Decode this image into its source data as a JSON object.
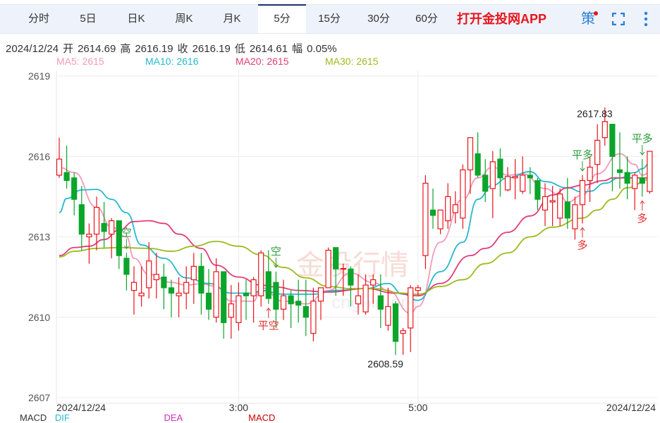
{
  "tabs": [
    {
      "label": "分时"
    },
    {
      "label": "5日"
    },
    {
      "label": "日K"
    },
    {
      "label": "周K"
    },
    {
      "label": "月K"
    },
    {
      "label": "5分",
      "active": true
    },
    {
      "label": "15分"
    },
    {
      "label": "30分"
    },
    {
      "label": "60分"
    }
  ],
  "toolbar": {
    "app_link": "打开金投网APP",
    "strategy_label": "策",
    "fullscreen_icon": "fullscreen-icon",
    "more_icon": "vertical-dots-icon"
  },
  "info": {
    "date": "2024/12/24",
    "open_label": "开",
    "open": "2614.69",
    "high_label": "高",
    "high": "2616.19",
    "close_label": "收",
    "close": "2616.19",
    "low_label": "低",
    "low": "2614.61",
    "change_label": "幅",
    "change": "0.05%"
  },
  "legend": [
    {
      "text": "MA5: 2615",
      "color": "#f29bb8"
    },
    {
      "text": "MA10: 2616",
      "color": "#25b9cf"
    },
    {
      "text": "MA20: 2615",
      "color": "#e23e74"
    },
    {
      "text": "MA30: 2615",
      "color": "#9cbb1e"
    }
  ],
  "watermark": {
    "text": "金投行情",
    "sub": "cngold.org"
  },
  "macd_row": {
    "label": "MACD",
    "dif": "DIF",
    "dea": "DEA",
    "macd": "MACD"
  },
  "chart_data": {
    "type": "candlestick",
    "ylim": [
      2607,
      2619
    ],
    "yticks": [
      "2619",
      "2616",
      "2613",
      "2610",
      "2607"
    ],
    "xticks": [
      {
        "label": "2024/12/24",
        "index": 0
      },
      {
        "label": "3:00",
        "index": 24
      },
      {
        "label": "5:00",
        "index": 48
      },
      {
        "label": "2024/12/24",
        "index": 79
      }
    ],
    "colors": {
      "up": "#e8141c",
      "down": "#0aa52a"
    },
    "max_label": {
      "text": "2617.83",
      "index": 74
    },
    "min_label": {
      "text": "2608.59",
      "index": 46
    },
    "candles": [
      [
        2615.3,
        2616.7,
        2615.2,
        2615.9
      ],
      [
        2615.4,
        2616.4,
        2614.8,
        2615.1
      ],
      [
        2615.2,
        2615.4,
        2613.8,
        2614.4
      ],
      [
        2614.2,
        2614.9,
        2612.5,
        2613.1
      ],
      [
        2613.0,
        2613.5,
        2612.0,
        2613.1
      ],
      [
        2613.1,
        2614.5,
        2612.5,
        2614.1
      ],
      [
        2613.5,
        2614.3,
        2612.6,
        2613.2
      ],
      [
        2613.1,
        2613.7,
        2612.2,
        2613.6
      ],
      [
        2613.6,
        2613.6,
        2611.8,
        2612.3
      ],
      [
        2612.2,
        2612.4,
        2611.0,
        2611.6
      ],
      [
        2611.0,
        2611.9,
        2610.1,
        2611.3
      ],
      [
        2610.8,
        2611.9,
        2610.4,
        2610.9
      ],
      [
        2611.1,
        2612.8,
        2610.7,
        2612.1
      ],
      [
        2611.4,
        2612.4,
        2610.7,
        2611.6
      ],
      [
        2611.5,
        2612.0,
        2610.3,
        2611.1
      ],
      [
        2611.1,
        2611.4,
        2610.0,
        2610.9
      ],
      [
        2610.8,
        2611.5,
        2610.0,
        2610.9
      ],
      [
        2610.9,
        2611.9,
        2610.3,
        2611.3
      ],
      [
        2611.4,
        2612.4,
        2610.5,
        2611.9
      ],
      [
        2611.9,
        2612.4,
        2610.1,
        2610.9
      ],
      [
        2610.9,
        2611.8,
        2609.9,
        2610.3
      ],
      [
        2610.0,
        2612.2,
        2609.8,
        2611.7
      ],
      [
        2611.7,
        2611.7,
        2609.2,
        2609.8
      ],
      [
        2610.0,
        2611.2,
        2609.2,
        2610.5
      ],
      [
        2609.8,
        2611.3,
        2609.5,
        2610.8
      ],
      [
        2610.9,
        2611.4,
        2609.9,
        2610.8
      ],
      [
        2610.8,
        2611.5,
        2609.8,
        2611.4
      ],
      [
        2610.8,
        2612.5,
        2610.4,
        2612.4
      ],
      [
        2611.7,
        2612.5,
        2610.5,
        2610.7
      ],
      [
        2611.3,
        2611.7,
        2609.6,
        2610.3
      ],
      [
        2610.3,
        2611.4,
        2609.9,
        2610.8
      ],
      [
        2610.8,
        2611.0,
        2609.6,
        2610.5
      ],
      [
        2610.6,
        2611.4,
        2609.8,
        2610.45
      ],
      [
        2610.4,
        2611.4,
        2609.3,
        2610.0
      ],
      [
        2609.4,
        2611.1,
        2609.1,
        2610.6
      ],
      [
        2610.6,
        2611.1,
        2609.9,
        2611.1
      ],
      [
        2611.1,
        2612.6,
        2611.1,
        2612.5
      ],
      [
        2612.6,
        2612.6,
        2610.8,
        2611.8
      ],
      [
        2611.8,
        2612.0,
        2610.8,
        2611.82
      ],
      [
        2611.8,
        2611.9,
        2610.4,
        2611.2
      ],
      [
        2610.5,
        2611.6,
        2610.1,
        2610.8
      ],
      [
        2610.2,
        2611.6,
        2610.1,
        2611.2
      ],
      [
        2611.2,
        2611.6,
        2610.5,
        2611.4
      ],
      [
        2610.8,
        2611.6,
        2609.6,
        2610.3
      ],
      [
        2609.7,
        2611.1,
        2609.5,
        2610.4
      ],
      [
        2610.5,
        2610.6,
        2608.59,
        2609.1
      ],
      [
        2609.4,
        2609.6,
        2608.6,
        2609.5
      ],
      [
        2609.6,
        2611.2,
        2608.7,
        2611.1
      ],
      [
        2611.0,
        2611.2,
        2610.8,
        2611.1
      ],
      [
        2612.3,
        2615.3,
        2611.8,
        2615.0
      ],
      [
        2614.0,
        2614.8,
        2613.3,
        2613.8
      ],
      [
        2613.3,
        2614.0,
        2613.1,
        2614.0
      ],
      [
        2613.6,
        2615.0,
        2613.3,
        2614.5
      ],
      [
        2613.9,
        2614.7,
        2613.5,
        2614.2
      ],
      [
        2613.7,
        2615.7,
        2613.3,
        2615.5
      ],
      [
        2615.5,
        2616.7,
        2614.6,
        2616.7
      ],
      [
        2616.1,
        2616.9,
        2615.2,
        2615.3
      ],
      [
        2615.3,
        2615.9,
        2614.3,
        2614.7
      ],
      [
        2614.8,
        2616.2,
        2613.7,
        2615.8
      ],
      [
        2615.9,
        2616.3,
        2614.5,
        2615.2
      ],
      [
        2614.75,
        2615.6,
        2614.7,
        2615.25
      ],
      [
        2615.2,
        2615.9,
        2614.4,
        2615.25
      ],
      [
        2614.7,
        2616.0,
        2614.6,
        2615.3
      ],
      [
        2615.3,
        2615.6,
        2614.6,
        2615.2
      ],
      [
        2615.1,
        2615.2,
        2614.0,
        2614.4
      ],
      [
        2614.0,
        2615.0,
        2613.4,
        2614.5
      ],
      [
        2614.3,
        2614.9,
        2613.4,
        2614.35
      ],
      [
        2613.7,
        2614.8,
        2613.4,
        2614.6
      ],
      [
        2614.3,
        2615.2,
        2613.3,
        2613.7
      ],
      [
        2613.3,
        2614.5,
        2612.9,
        2614.2
      ],
      [
        2614.2,
        2615.3,
        2613.5,
        2615.1
      ],
      [
        2615.1,
        2616.0,
        2614.3,
        2615.6
      ],
      [
        2615.7,
        2617.2,
        2615.0,
        2616.6
      ],
      [
        2616.7,
        2617.83,
        2616.4,
        2617.3
      ],
      [
        2617.2,
        2617.2,
        2614.7,
        2616.0
      ],
      [
        2615.5,
        2616.9,
        2614.8,
        2615.4
      ],
      [
        2615.4,
        2616.0,
        2614.4,
        2615.0
      ],
      [
        2614.8,
        2615.4,
        2614.0,
        2615.3
      ],
      [
        2615.2,
        2615.9,
        2614.5,
        2615.0
      ],
      [
        2614.69,
        2616.19,
        2614.61,
        2616.19
      ]
    ],
    "ma": [
      {
        "name": "MA5",
        "color": "#f29bb8",
        "points": [
          [
            0,
            2615.59
          ],
          [
            2,
            2615.4
          ],
          [
            5,
            2614.1
          ],
          [
            7,
            2613.36
          ],
          [
            9,
            2613.0
          ],
          [
            10,
            2612.2
          ],
          [
            12,
            2611.6
          ],
          [
            15,
            2611.3
          ],
          [
            17,
            2611.2
          ],
          [
            19,
            2611.25
          ],
          [
            21,
            2611.15
          ],
          [
            23,
            2610.6
          ],
          [
            26,
            2610.6
          ],
          [
            27,
            2611.1
          ],
          [
            30,
            2610.6
          ],
          [
            33,
            2610.5
          ],
          [
            36,
            2611.0
          ],
          [
            39,
            2611.65
          ],
          [
            42,
            2611.3
          ],
          [
            44,
            2611.0
          ],
          [
            47,
            2610.15
          ],
          [
            48,
            2610.4
          ],
          [
            51,
            2612.8
          ],
          [
            54,
            2614.4
          ],
          [
            56,
            2615.2
          ],
          [
            58,
            2615.6
          ],
          [
            60,
            2615.3
          ],
          [
            62,
            2615.35
          ],
          [
            65,
            2614.8
          ],
          [
            67,
            2614.55
          ],
          [
            68,
            2614.3
          ],
          [
            70,
            2614.55
          ],
          [
            72,
            2615.35
          ],
          [
            75,
            2616.1
          ],
          [
            77,
            2615.7
          ],
          [
            78,
            2615.3
          ],
          [
            79,
            2615.4
          ]
        ]
      },
      {
        "name": "MA10",
        "color": "#25b9cf",
        "points": [
          [
            0,
            2613.9
          ],
          [
            1,
            2614.43
          ],
          [
            3,
            2614.75
          ],
          [
            5,
            2614.77
          ],
          [
            7,
            2614.4
          ],
          [
            9,
            2613.9
          ],
          [
            11,
            2612.7
          ],
          [
            14,
            2612.2
          ],
          [
            17,
            2611.47
          ],
          [
            20,
            2611.26
          ],
          [
            23,
            2610.9
          ],
          [
            26,
            2610.9
          ],
          [
            27,
            2611.0
          ],
          [
            30,
            2610.86
          ],
          [
            34,
            2610.86
          ],
          [
            37,
            2611.0
          ],
          [
            41,
            2611.07
          ],
          [
            44,
            2611.26
          ],
          [
            46,
            2610.86
          ],
          [
            48,
            2610.63
          ],
          [
            51,
            2611.7
          ],
          [
            54,
            2612.8
          ],
          [
            56,
            2614.4
          ],
          [
            58,
            2614.93
          ],
          [
            60,
            2615.2
          ],
          [
            63,
            2615.43
          ],
          [
            65,
            2615.06
          ],
          [
            68,
            2614.83
          ],
          [
            70,
            2614.67
          ],
          [
            71,
            2614.7
          ],
          [
            73,
            2615.0
          ],
          [
            75,
            2615.2
          ],
          [
            77,
            2615.4
          ],
          [
            78,
            2615.54
          ],
          [
            79,
            2615.75
          ]
        ]
      },
      {
        "name": "MA20",
        "color": "#e23e74",
        "points": [
          [
            0,
            2612.3
          ],
          [
            2,
            2612.6
          ],
          [
            4,
            2612.65
          ],
          [
            6,
            2612.9
          ],
          [
            8,
            2613.25
          ],
          [
            10,
            2613.57
          ],
          [
            12,
            2613.6
          ],
          [
            14,
            2613.5
          ],
          [
            16,
            2613.1
          ],
          [
            19,
            2612.57
          ],
          [
            21,
            2611.94
          ],
          [
            24,
            2611.5
          ],
          [
            27,
            2611.2
          ],
          [
            29,
            2611.13
          ],
          [
            32,
            2611.0
          ],
          [
            36,
            2610.94
          ],
          [
            41,
            2611.07
          ],
          [
            45,
            2610.9
          ],
          [
            48,
            2610.8
          ],
          [
            51,
            2611.26
          ],
          [
            55,
            2612.3
          ],
          [
            57,
            2612.57
          ],
          [
            60,
            2613.17
          ],
          [
            63,
            2613.78
          ],
          [
            66,
            2614.56
          ],
          [
            68,
            2614.83
          ],
          [
            70,
            2614.93
          ],
          [
            73,
            2615.1
          ],
          [
            74,
            2615.2
          ],
          [
            77,
            2615.2
          ],
          [
            79,
            2615.2
          ]
        ]
      },
      {
        "name": "MA30",
        "color": "#9cbb1e",
        "points": [
          [
            0,
            2612.25
          ],
          [
            2,
            2612.46
          ],
          [
            5,
            2612.57
          ],
          [
            8,
            2612.6
          ],
          [
            12,
            2612.57
          ],
          [
            15,
            2612.46
          ],
          [
            18,
            2612.65
          ],
          [
            21,
            2612.83
          ],
          [
            24,
            2612.65
          ],
          [
            27,
            2612.33
          ],
          [
            30,
            2611.86
          ],
          [
            33,
            2611.47
          ],
          [
            36,
            2611.15
          ],
          [
            39,
            2611.07
          ],
          [
            42,
            2611.07
          ],
          [
            46,
            2610.9
          ],
          [
            48,
            2610.86
          ],
          [
            51,
            2611.15
          ],
          [
            54,
            2611.4
          ],
          [
            57,
            2612.0
          ],
          [
            60,
            2612.4
          ],
          [
            63,
            2613.0
          ],
          [
            66,
            2613.36
          ],
          [
            70,
            2613.7
          ],
          [
            72,
            2614.0
          ],
          [
            74,
            2614.4
          ],
          [
            76,
            2614.83
          ],
          [
            79,
            2615.14
          ]
        ]
      }
    ],
    "signals": [
      {
        "text": "空",
        "index": 9,
        "type": "sell"
      },
      {
        "text": "空",
        "index": 29,
        "type": "sell"
      },
      {
        "text": "平空",
        "index": 28,
        "type": "cover"
      },
      {
        "text": "平多",
        "index": 70,
        "type": "close-long"
      },
      {
        "text": "多",
        "index": 70,
        "type": "buy"
      },
      {
        "text": "平多",
        "index": 78,
        "type": "close-long"
      },
      {
        "text": "多",
        "index": 78,
        "type": "buy"
      }
    ]
  }
}
